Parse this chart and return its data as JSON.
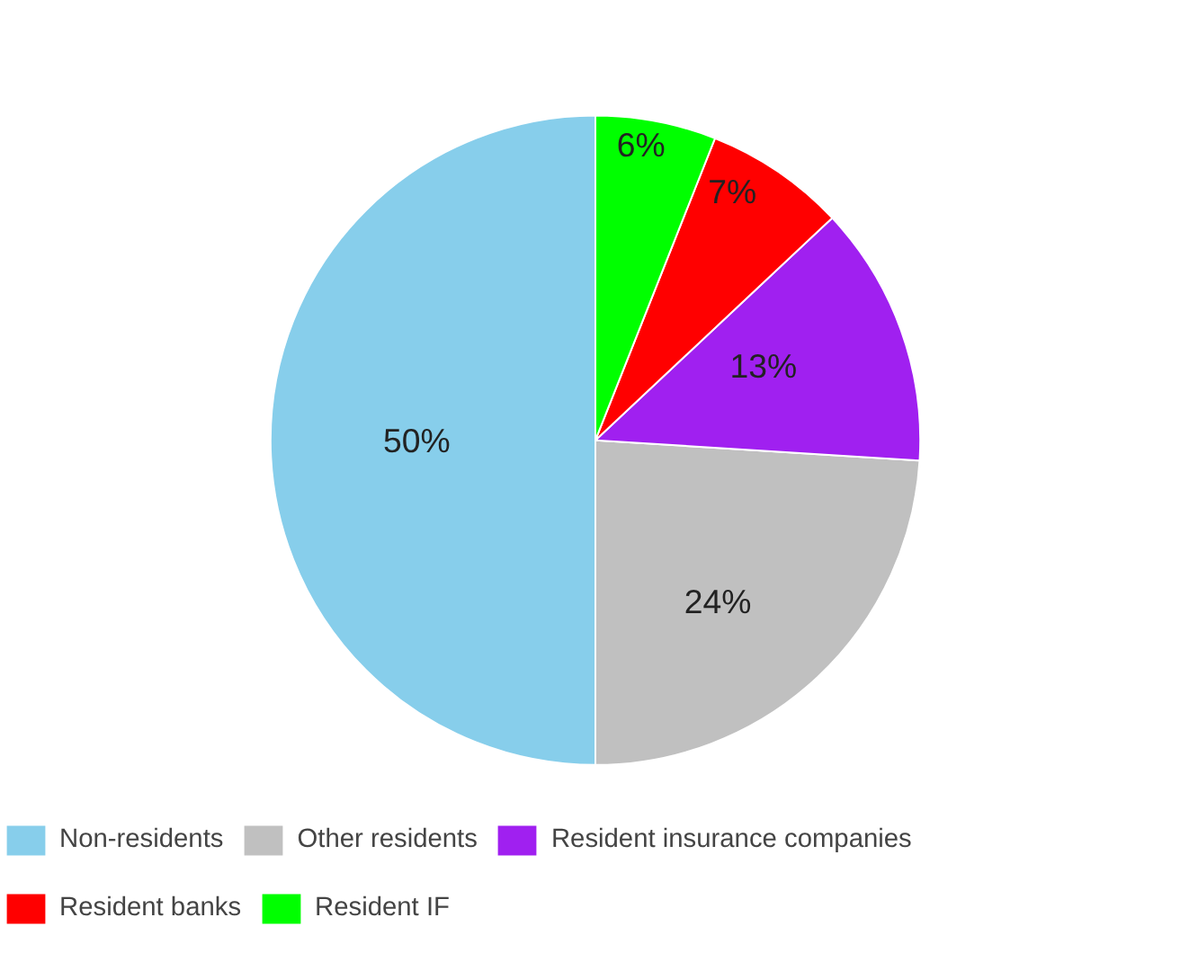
{
  "chart_data": {
    "type": "pie",
    "categories": [
      "Non-residents",
      "Other residents",
      "Resident insurance companies",
      "Resident banks",
      "Resident IF"
    ],
    "values": [
      50,
      24,
      13,
      7,
      6
    ],
    "colors": [
      "#87ceeb",
      "#c0c0c0",
      "#a020f0",
      "#ff0000",
      "#00ff00"
    ],
    "value_labels": [
      "50%",
      "24%",
      "13%",
      "7%",
      "6%"
    ],
    "legend": "bottom"
  }
}
